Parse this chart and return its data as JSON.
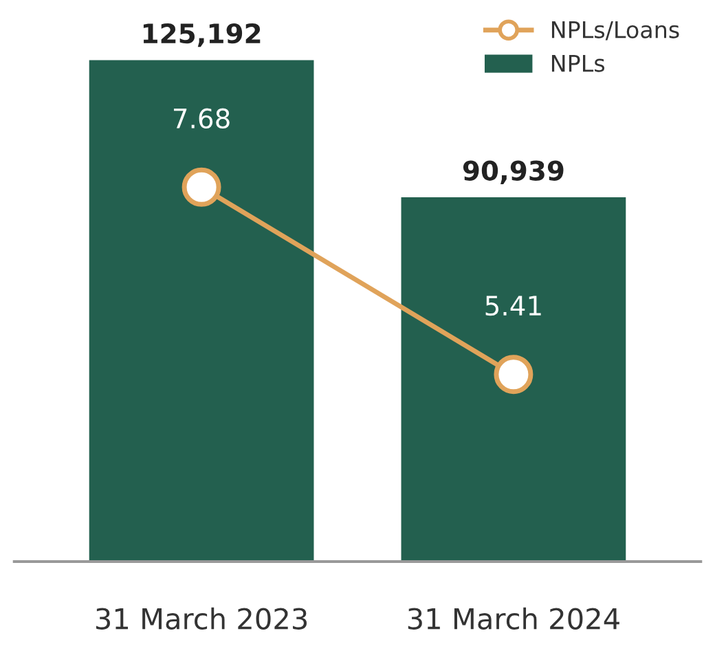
{
  "chart_data": {
    "type": "bar",
    "categories": [
      "31 March 2023",
      "31 March 2024"
    ],
    "series": [
      {
        "name": "NPLs",
        "color": "#23604f",
        "values": [
          125192,
          90939
        ],
        "value_labels": [
          "125,192",
          "90,939"
        ]
      },
      {
        "name": "NPLs/Loans",
        "type": "line",
        "axis": "y2",
        "color": "#e0a35a",
        "marker": "circle",
        "values": [
          7.68,
          5.41
        ]
      }
    ],
    "data_labels": true,
    "legend": "top right",
    "grid": false,
    "tick_labels": "x"
  }
}
